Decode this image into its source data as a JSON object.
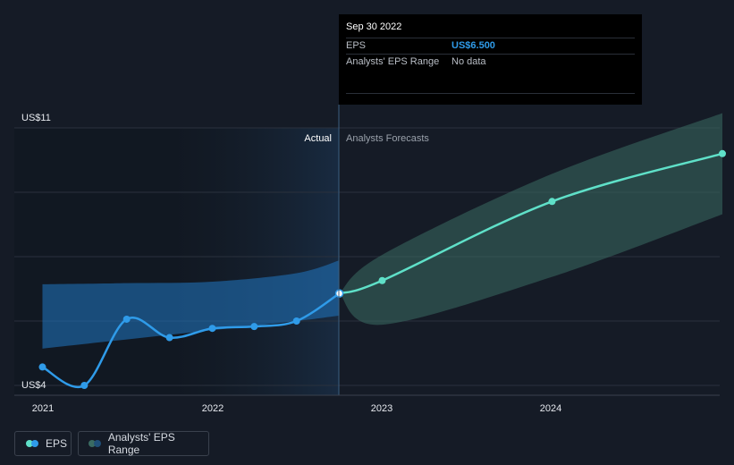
{
  "chart_data": {
    "type": "line",
    "x_ticks": [
      "2021",
      "2022",
      "2023",
      "2024"
    ],
    "y_ticks": [
      "US$4",
      "US$11"
    ],
    "ylim": [
      4,
      11
    ],
    "divider_labels": {
      "actual": "Actual",
      "forecast": "Analysts Forecasts"
    },
    "series": [
      {
        "name": "EPS",
        "color": "#2f9be9",
        "points": [
          {
            "x": "2020-12-31",
            "y": 4.5
          },
          {
            "x": "2021-03-31",
            "y": 4.0
          },
          {
            "x": "2021-06-30",
            "y": 5.8
          },
          {
            "x": "2021-09-30",
            "y": 5.3
          },
          {
            "x": "2021-12-31",
            "y": 5.55
          },
          {
            "x": "2022-03-31",
            "y": 5.6
          },
          {
            "x": "2022-06-30",
            "y": 5.75
          },
          {
            "x": "2022-09-30",
            "y": 6.5
          }
        ]
      },
      {
        "name": "EPS Forecast",
        "color": "#5fe0c8",
        "points": [
          {
            "x": "2022-09-30",
            "y": 6.5
          },
          {
            "x": "2022-12-31",
            "y": 6.85
          },
          {
            "x": "2023-12-31",
            "y": 9.0
          },
          {
            "x": "2024-12-31",
            "y": 10.3
          }
        ]
      }
    ],
    "range_series": [
      {
        "name": "Analysts' EPS Range (historical)",
        "color": "#1f6fb5",
        "points": [
          {
            "x": "2020-12-31",
            "low": 5.0,
            "high": 6.75
          },
          {
            "x": "2021-06-30",
            "low": 5.25,
            "high": 6.78
          },
          {
            "x": "2021-12-31",
            "low": 5.5,
            "high": 6.82
          },
          {
            "x": "2022-06-30",
            "low": 5.75,
            "high": 7.05
          },
          {
            "x": "2022-09-30",
            "low": 5.9,
            "high": 7.4
          }
        ]
      },
      {
        "name": "Analysts' EPS Range (forecast)",
        "color": "#3a6b62",
        "points": [
          {
            "x": "2022-09-30",
            "low": 6.5,
            "high": 6.5
          },
          {
            "x": "2022-12-31",
            "low": 5.65,
            "high": 7.55
          },
          {
            "x": "2023-12-31",
            "low": 6.95,
            "high": 9.75
          },
          {
            "x": "2024-12-31",
            "low": 8.65,
            "high": 11.4
          }
        ]
      }
    ],
    "tooltip": {
      "date": "Sep 30 2022",
      "rows": [
        {
          "label": "EPS",
          "value": "US$6.500"
        },
        {
          "label": "Analysts' EPS Range",
          "value": "No data"
        }
      ]
    },
    "legend": [
      "EPS",
      "Analysts' EPS Range"
    ],
    "colors": {
      "background": "#151b26",
      "eps_line": "#2f9be9",
      "forecast_line": "#5fe0c8",
      "range_legend": "#3a6b62",
      "gridline": "#2a313d"
    }
  }
}
